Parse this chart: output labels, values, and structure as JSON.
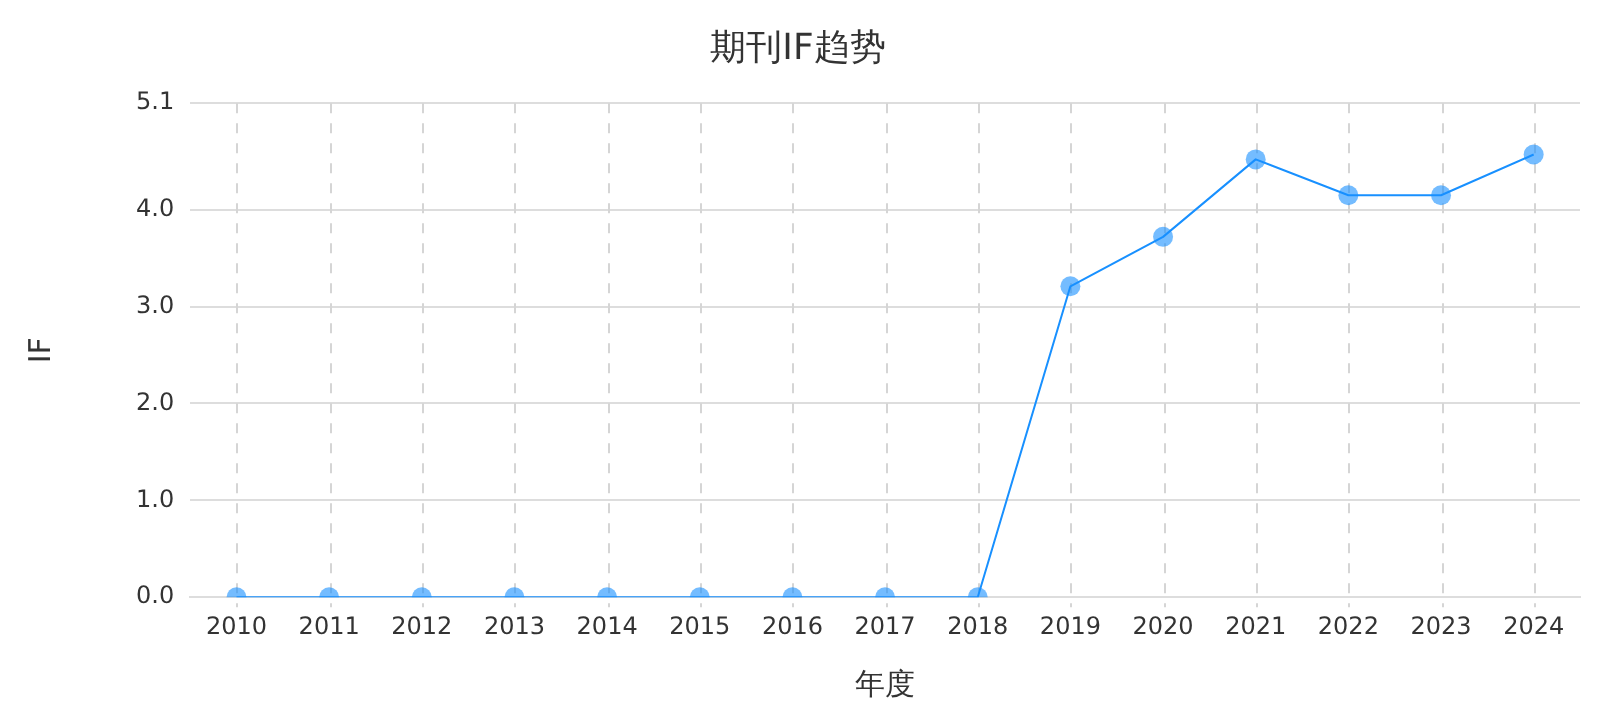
{
  "chart_data": {
    "type": "line",
    "title": "期刊IF趋势",
    "xlabel": "年度",
    "ylabel": "IF",
    "categories": [
      "2010",
      "2011",
      "2012",
      "2013",
      "2014",
      "2015",
      "2016",
      "2017",
      "2018",
      "2019",
      "2020",
      "2021",
      "2022",
      "2023",
      "2024"
    ],
    "series": [
      {
        "color": "#1890ff",
        "values": [
          0,
          0,
          0,
          0,
          0,
          0,
          0,
          0,
          0,
          3.21,
          3.72,
          4.52,
          4.15,
          4.15,
          4.57
        ]
      }
    ],
    "ylim": [
      0,
      5.1
    ],
    "yticks": [
      {
        "value": 0,
        "label": "0.0"
      },
      {
        "value": 1,
        "label": "1.0"
      },
      {
        "value": 2,
        "label": "2.0"
      },
      {
        "value": 3,
        "label": "3.0"
      },
      {
        "value": 4,
        "label": "4.0"
      },
      5.1
    ],
    "grid": true,
    "marker": "circle",
    "line_style": "solid",
    "legend": false
  }
}
